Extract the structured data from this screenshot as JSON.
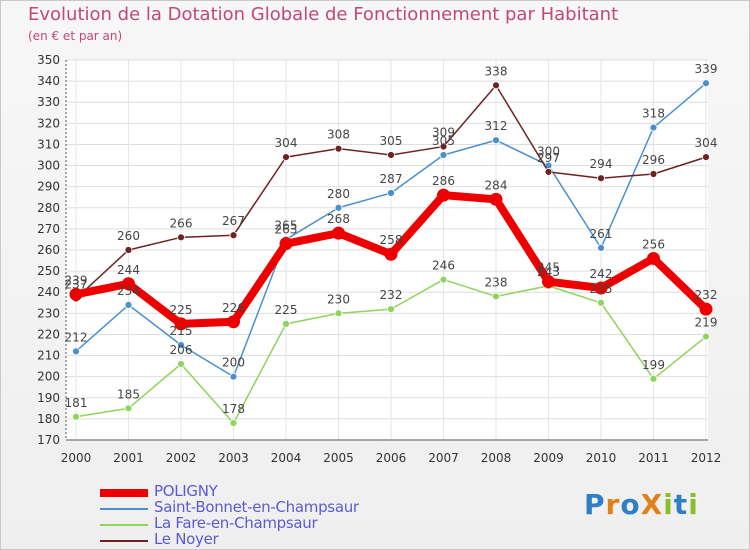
{
  "title": "Evolution de la Dotation Globale de Fonctionnement par Habitant",
  "subtitle": "(en € et par an)",
  "logo": {
    "text": "ProXiti",
    "letters": [
      {
        "ch": "P",
        "color": "#2f7fc4"
      },
      {
        "ch": "r",
        "color": "#e0821c"
      },
      {
        "ch": "o",
        "color": "#2f7fc4"
      },
      {
        "ch": "X",
        "color": "#e0821c"
      },
      {
        "ch": "i",
        "color": "#8cbd2a"
      },
      {
        "ch": "t",
        "color": "#2f7fc4"
      },
      {
        "ch": "i",
        "color": "#8cbd2a"
      }
    ]
  },
  "chart_data": {
    "type": "line",
    "title": "Evolution de la Dotation Globale de Fonctionnement par Habitant",
    "subtitle": "(en € et par an)",
    "x": [
      "2000",
      "2001",
      "2002",
      "2003",
      "2004",
      "2005",
      "2006",
      "2007",
      "2008",
      "2009",
      "2010",
      "2011",
      "2012"
    ],
    "ylim": [
      170,
      350
    ],
    "yticks": [
      170,
      180,
      190,
      200,
      210,
      220,
      230,
      240,
      250,
      260,
      270,
      280,
      290,
      300,
      310,
      320,
      330,
      340,
      350
    ],
    "grid": true,
    "legend_position": "bottom-left",
    "series": [
      {
        "name": "POLIGNY",
        "color": "#ee0000",
        "values": [
          239,
          244,
          225,
          226,
          263,
          268,
          258,
          286,
          284,
          245,
          242,
          256,
          232
        ],
        "labels": [
          "239",
          "244",
          "225",
          "226",
          "263",
          "268",
          "258",
          "286",
          "284",
          "245",
          "242",
          "256",
          "232"
        ]
      },
      {
        "name": "Saint-Bonnet-en-Champsaur",
        "color": "#4a90cf",
        "values": [
          212,
          234,
          215,
          200,
          265,
          280,
          287,
          305,
          312,
          300,
          261,
          318,
          339
        ],
        "labels": [
          "212",
          "234",
          "215",
          "200",
          "265",
          "280",
          "287",
          "305",
          "312",
          "300",
          "261",
          "318",
          "339"
        ]
      },
      {
        "name": "La Fare-en-Champsaur",
        "color": "#8fd45c",
        "values": [
          181,
          185,
          206,
          178,
          225,
          230,
          232,
          246,
          238,
          243,
          235,
          199,
          219
        ],
        "labels": [
          "181",
          "185",
          "206",
          "178",
          "225",
          "230",
          "232",
          "246",
          "238",
          "243",
          "235",
          "199",
          "219"
        ]
      },
      {
        "name": "Le Noyer",
        "color": "#6e2222",
        "values": [
          237,
          260,
          266,
          267,
          304,
          308,
          305,
          309,
          338,
          297,
          294,
          296,
          304
        ],
        "labels": [
          "237",
          "260",
          "266",
          "267",
          "304",
          "308",
          "305",
          "309",
          "338",
          "297",
          "294",
          "296",
          "304"
        ]
      }
    ]
  }
}
